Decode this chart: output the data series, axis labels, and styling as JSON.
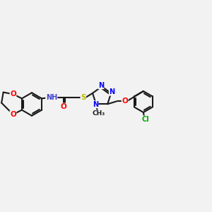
{
  "background_color": "#f2f2f2",
  "bond_color": "#1a1a1a",
  "bond_width": 1.5,
  "atom_colors": {
    "N": "#0000ff",
    "O": "#ff0000",
    "S": "#b8b800",
    "Cl": "#00aa00",
    "C": "#1a1a1a",
    "NH": "#4444cc"
  },
  "font_size": 7.0,
  "fig_width": 3.0,
  "fig_height": 3.0,
  "dpi": 100,
  "xlim": [
    0,
    12
  ],
  "ylim": [
    0,
    10
  ]
}
